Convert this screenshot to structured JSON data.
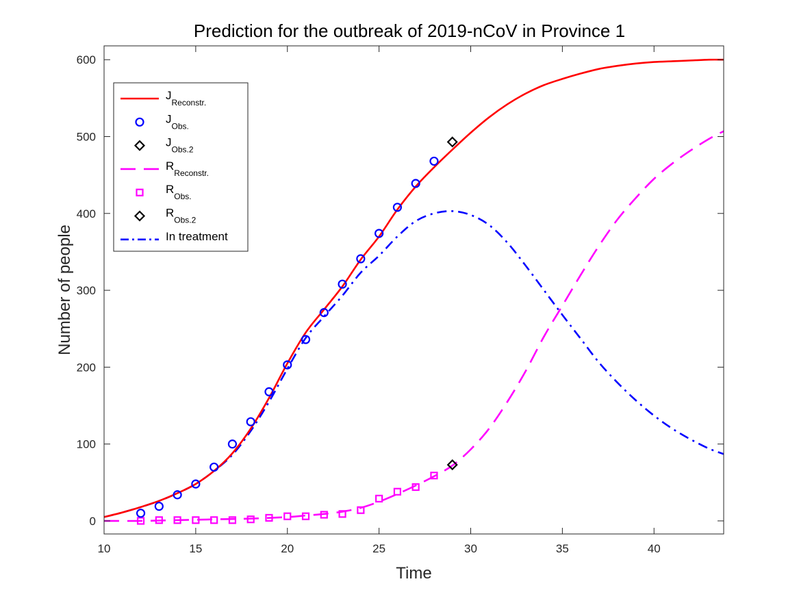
{
  "chart_data": {
    "type": "line",
    "title": "Prediction for the outbreak of 2019-nCoV in Province 1",
    "xlabel": "Time",
    "ylabel": "Number of people",
    "xlim": [
      10,
      43.8
    ],
    "ylim": [
      -17,
      618
    ],
    "xticks": [
      10,
      15,
      20,
      25,
      30,
      35,
      40
    ],
    "yticks": [
      0,
      100,
      200,
      300,
      400,
      500,
      600
    ],
    "grid": false,
    "legend_position": "top-left",
    "series": [
      {
        "name": "J_Reconstr.",
        "label_main": "J",
        "label_sub": "Reconstr.",
        "style": "solid-line",
        "color": "#ff0000",
        "x": [
          10,
          11,
          12,
          13,
          14,
          15,
          16,
          17,
          18,
          19,
          20,
          21,
          22,
          23,
          24,
          25,
          26,
          27,
          28,
          29,
          30,
          31,
          32,
          33,
          34,
          35,
          36,
          37,
          38,
          39,
          40,
          41,
          42,
          43,
          43.8
        ],
        "y": [
          5,
          11,
          18,
          26,
          36,
          48,
          65,
          88,
          120,
          160,
          205,
          245,
          275,
          305,
          340,
          370,
          405,
          435,
          460,
          483,
          505,
          525,
          542,
          556,
          567,
          575,
          582,
          588,
          592,
          595,
          597,
          598,
          599,
          600,
          600
        ]
      },
      {
        "name": "J_Obs.",
        "label_main": "J",
        "label_sub": "Obs.",
        "style": "circle",
        "color": "#0000ff",
        "x": [
          12,
          13,
          14,
          15,
          16,
          17,
          18,
          19,
          20,
          21,
          22,
          23,
          24,
          25,
          26,
          27,
          28
        ],
        "y": [
          10,
          19,
          34,
          48,
          70,
          100,
          129,
          168,
          203,
          236,
          271,
          308,
          341,
          374,
          408,
          439,
          468
        ]
      },
      {
        "name": "J_Obs.2",
        "label_main": "J",
        "label_sub": "Obs.2",
        "style": "diamond",
        "color": "#000000",
        "x": [
          29
        ],
        "y": [
          493
        ]
      },
      {
        "name": "R_Reconstr.",
        "label_main": "R",
        "label_sub": "Reconstr.",
        "style": "dashed-line",
        "color": "#ff00ff",
        "x": [
          10,
          12,
          14,
          16,
          18,
          20,
          21,
          22,
          23,
          24,
          25,
          26,
          27,
          28,
          29,
          30,
          31,
          32,
          33,
          34,
          35,
          36,
          37,
          38,
          39,
          40,
          41,
          42,
          43,
          43.8
        ],
        "y": [
          0,
          0,
          1,
          2,
          3,
          5,
          7,
          9,
          12,
          17,
          25,
          35,
          46,
          58,
          72,
          93,
          120,
          155,
          195,
          240,
          280,
          320,
          358,
          392,
          420,
          445,
          465,
          482,
          497,
          507
        ]
      },
      {
        "name": "R_Obs.",
        "label_main": "R",
        "label_sub": "Obs.",
        "style": "square",
        "color": "#ff00ff",
        "x": [
          12,
          13,
          14,
          15,
          16,
          17,
          18,
          19,
          20,
          21,
          22,
          23,
          24,
          25,
          26,
          27,
          28
        ],
        "y": [
          0,
          1,
          1,
          1,
          1,
          1,
          2,
          4,
          6,
          6,
          8,
          9,
          14,
          29,
          38,
          44,
          59
        ]
      },
      {
        "name": "R_Obs.2",
        "label_main": "R",
        "label_sub": "Obs.2",
        "style": "diamond",
        "color": "#000000",
        "x": [
          29
        ],
        "y": [
          73
        ]
      },
      {
        "name": "In treatment",
        "label_main": "In treatment",
        "label_sub": "",
        "style": "dashdot-line",
        "color": "#0000ff",
        "x": [
          10,
          11,
          12,
          13,
          14,
          15,
          16,
          17,
          18,
          19,
          20,
          21,
          22,
          23,
          24,
          25,
          26,
          27,
          28,
          29,
          30,
          31,
          32,
          33,
          34,
          35,
          36,
          37,
          38,
          39,
          40,
          41,
          42,
          43,
          43.8
        ],
        "y": [
          5,
          11,
          18,
          26,
          36,
          48,
          65,
          86,
          117,
          155,
          198,
          238,
          266,
          293,
          323,
          345,
          370,
          390,
          400,
          403,
          398,
          385,
          362,
          332,
          300,
          268,
          237,
          206,
          180,
          157,
          137,
          120,
          106,
          94,
          87
        ]
      }
    ]
  }
}
